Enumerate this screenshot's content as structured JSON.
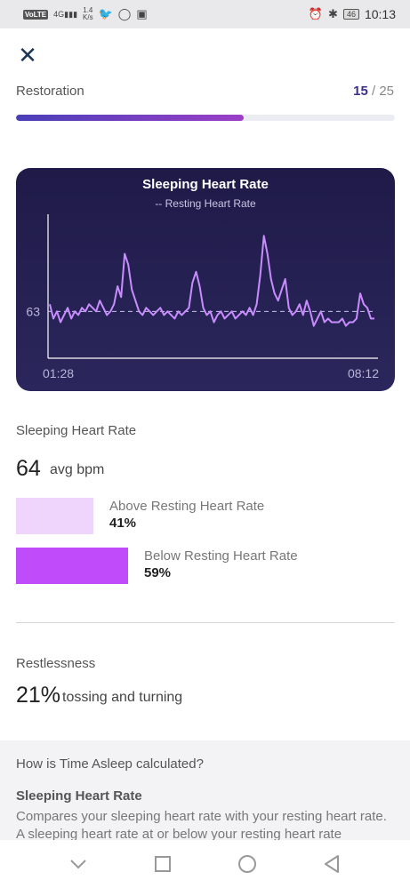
{
  "status_bar": {
    "network": "VoLTE",
    "signal": "4G",
    "speed_value": "1.4",
    "speed_unit": "K/s",
    "battery": "46",
    "time": "10:13"
  },
  "header": {
    "progress_label": "Restoration",
    "progress_current": "15",
    "progress_total": "25",
    "progress_fraction": 0.6
  },
  "chart_data": {
    "type": "line",
    "title": "Sleeping Heart Rate",
    "legend": "-- Resting Heart Rate",
    "y_tick_label": "63",
    "resting_heart_rate": 63,
    "x_start_label": "01:28",
    "x_end_label": "08:12",
    "ylim": [
      50,
      90
    ],
    "series": [
      {
        "values": [
          65,
          61,
          63,
          60,
          62,
          64,
          61,
          63,
          62,
          64,
          63,
          65,
          64,
          63,
          66,
          64,
          62,
          63,
          65,
          70,
          67,
          79,
          76,
          69,
          66,
          63,
          62,
          64,
          63,
          62,
          63,
          64,
          62,
          63,
          62,
          61,
          63,
          62,
          63,
          64,
          71,
          74,
          70,
          64,
          62,
          63,
          60,
          62,
          63,
          61,
          62,
          63,
          61,
          62,
          63,
          62,
          64,
          62,
          65,
          73,
          84,
          79,
          72,
          68,
          66,
          69,
          72,
          64,
          62,
          63,
          65,
          62,
          66,
          63,
          59,
          61,
          63,
          60,
          61,
          60,
          60,
          60,
          61,
          59,
          60,
          60,
          61,
          68,
          65,
          64,
          61,
          61
        ],
        "line_color": "#c98cff"
      }
    ]
  },
  "sleeping_hr": {
    "title": "Sleeping Heart Rate",
    "avg": "64",
    "avg_unit": "avg bpm",
    "above_label": "Above Resting Heart Rate",
    "above_pct": "41%",
    "above_value": 41,
    "above_color": "#efd4fb",
    "below_label": "Below Resting Heart Rate",
    "below_pct": "59%",
    "below_value": 59,
    "below_color": "#c04bfb"
  },
  "restlessness": {
    "title": "Restlessness",
    "value": "21%",
    "unit": "tossing and turning"
  },
  "info": {
    "question": "How is Time Asleep calculated?",
    "heading": "Sleeping Heart Rate",
    "body": "Compares your sleeping heart rate with your resting heart rate. A sleeping heart rate at or below your resting heart rate"
  },
  "nav": [
    "back-icon",
    "home-icon",
    "recents-icon",
    "collapse-icon"
  ]
}
